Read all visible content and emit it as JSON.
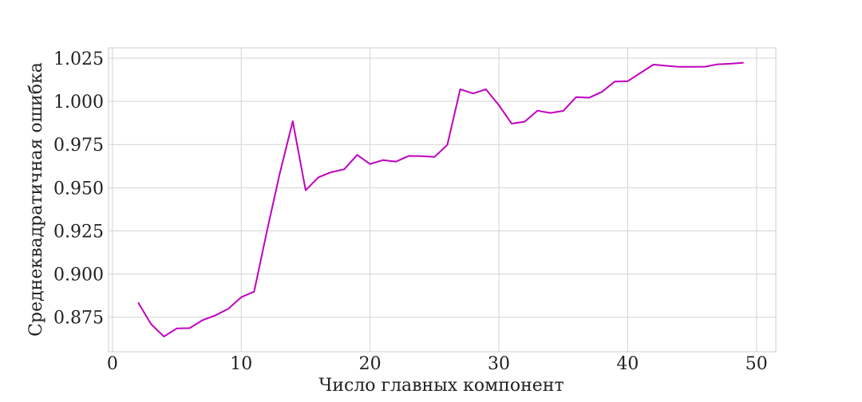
{
  "chart_data": {
    "type": "line",
    "title": "",
    "xlabel": "Число главных компонент",
    "ylabel": "Среднеквадратичная ошибка",
    "xlim": [
      -0.3,
      51.5
    ],
    "ylim": [
      0.855,
      1.031
    ],
    "xticks": [
      0,
      10,
      20,
      30,
      40,
      50
    ],
    "xtick_labels": [
      "0",
      "10",
      "20",
      "30",
      "40",
      "50"
    ],
    "yticks": [
      0.875,
      0.9,
      0.925,
      0.95,
      0.975,
      1.0,
      1.025
    ],
    "ytick_labels": [
      "0.875",
      "0.900",
      "0.925",
      "0.950",
      "0.975",
      "1.000",
      "1.025"
    ],
    "grid": true,
    "line_color": "#c000c0",
    "series": [
      {
        "x": [
          2,
          3,
          4,
          5,
          6,
          7,
          8,
          9,
          10,
          11,
          12,
          13,
          14,
          15,
          16,
          17,
          18,
          19,
          20,
          21,
          22,
          23,
          24,
          25,
          26,
          27,
          28,
          29,
          30,
          31,
          32,
          33,
          34,
          35,
          36,
          37,
          38,
          39,
          40,
          41,
          42,
          43,
          44,
          45,
          46,
          47,
          48,
          49
        ],
        "values": [
          0.8835,
          0.871,
          0.8638,
          0.8685,
          0.8687,
          0.8733,
          0.8761,
          0.8799,
          0.8866,
          0.8898,
          0.925,
          0.9585,
          0.9885,
          0.9485,
          0.9561,
          0.959,
          0.9607,
          0.969,
          0.9637,
          0.966,
          0.9651,
          0.9684,
          0.9683,
          0.9678,
          0.9748,
          1.007,
          1.0046,
          1.007,
          0.9978,
          0.9871,
          0.9882,
          0.9946,
          0.9933,
          0.9945,
          1.0025,
          1.0021,
          1.0055,
          1.0115,
          1.0117,
          1.0165,
          1.0213,
          1.0206,
          1.02,
          1.02,
          1.0201,
          1.0215,
          1.0218,
          1.0224
        ]
      }
    ]
  }
}
